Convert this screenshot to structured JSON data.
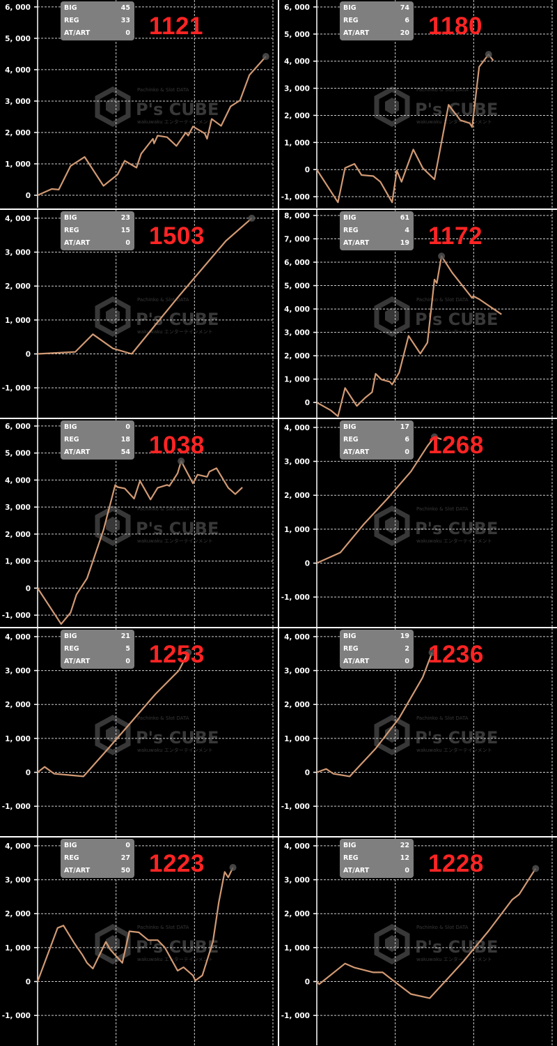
{
  "watermark": {
    "brand": "P's CUBE",
    "tagline": "Pachinko & Slot DATA",
    "sub": "wakuwaku エンターテインメント"
  },
  "colors": {
    "line": "#d29a74",
    "grid": "#cfcfcf",
    "axis": "#ffffff",
    "number": "#ff2424",
    "infobox": "#7f7f7f",
    "marker": "#555555"
  },
  "info_labels": [
    "BIG",
    "REG",
    "AT/ART"
  ],
  "chart_data": [
    {
      "type": "line",
      "label": "1121",
      "stats": {
        "BIG": 45,
        "REG": 33,
        "AT/ART": 0
      },
      "yticks": [
        0,
        1000,
        2000,
        3000,
        4000,
        5000,
        6000
      ],
      "ylim": [
        -400,
        6220
      ],
      "xlim": [
        0,
        100
      ],
      "grid": true,
      "points": [
        [
          0,
          0
        ],
        [
          6,
          200
        ],
        [
          9,
          180
        ],
        [
          14,
          930
        ],
        [
          20,
          1220
        ],
        [
          28,
          300
        ],
        [
          34,
          660
        ],
        [
          37,
          1100
        ],
        [
          42,
          880
        ],
        [
          44,
          1320
        ],
        [
          49,
          1800
        ],
        [
          49.5,
          1650
        ],
        [
          51,
          1900
        ],
        [
          55,
          1850
        ],
        [
          59,
          1570
        ],
        [
          63,
          2000
        ],
        [
          64,
          1900
        ],
        [
          66,
          2190
        ],
        [
          71,
          1970
        ],
        [
          72,
          1800
        ],
        [
          74,
          2430
        ],
        [
          78,
          2210
        ],
        [
          82,
          2830
        ],
        [
          86,
          3020
        ],
        [
          90,
          3830
        ],
        [
          97,
          4420
        ]
      ]
    },
    {
      "type": "line",
      "label": "1180",
      "stats": {
        "BIG": 74,
        "REG": 6,
        "AT/ART": 20
      },
      "yticks": [
        -1000,
        0,
        1000,
        2000,
        3000,
        4000,
        5000,
        6000
      ],
      "ylim": [
        -1410,
        6256
      ],
      "xlim": [
        0,
        100
      ],
      "grid": true,
      "points": [
        [
          0,
          0
        ],
        [
          9,
          -1210
        ],
        [
          12,
          60
        ],
        [
          16,
          210
        ],
        [
          19,
          -200
        ],
        [
          24,
          -240
        ],
        [
          27,
          -450
        ],
        [
          32,
          -1210
        ],
        [
          34,
          -40
        ],
        [
          36,
          -450
        ],
        [
          41,
          740
        ],
        [
          45,
          60
        ],
        [
          50,
          -360
        ],
        [
          56,
          2390
        ],
        [
          61,
          1820
        ],
        [
          65,
          1710
        ],
        [
          66,
          1570
        ],
        [
          69,
          3790
        ],
        [
          73,
          4250
        ],
        [
          75,
          4020
        ]
      ]
    },
    {
      "type": "line",
      "label": "1503",
      "stats": {
        "BIG": 23,
        "REG": 15,
        "AT/ART": 0
      },
      "yticks": [
        -1000,
        0,
        1000,
        2000,
        3000,
        4000
      ],
      "ylim": [
        -1880,
        4245
      ],
      "xlim": [
        0,
        100
      ],
      "grid": true,
      "points": [
        [
          0,
          0
        ],
        [
          16,
          60
        ],
        [
          23.5,
          580
        ],
        [
          32,
          160
        ],
        [
          40,
          0
        ],
        [
          60,
          1700
        ],
        [
          80,
          3330
        ],
        [
          91,
          4000
        ]
      ]
    },
    {
      "type": "line",
      "label": "1172",
      "stats": {
        "BIG": 61,
        "REG": 4,
        "AT/ART": 19
      },
      "yticks": [
        0,
        1000,
        2000,
        3000,
        4000,
        5000,
        6000,
        7000,
        8000
      ],
      "ylim": [
        -650,
        8237
      ],
      "xlim": [
        0,
        100
      ],
      "grid": true,
      "points": [
        [
          0,
          0
        ],
        [
          6,
          -340
        ],
        [
          9,
          -590
        ],
        [
          12,
          620
        ],
        [
          17,
          -150
        ],
        [
          20.5,
          200
        ],
        [
          23.5,
          440
        ],
        [
          25,
          1230
        ],
        [
          27.5,
          980
        ],
        [
          31,
          890
        ],
        [
          32,
          770
        ],
        [
          35,
          1280
        ],
        [
          39,
          2850
        ],
        [
          44,
          2090
        ],
        [
          47,
          2560
        ],
        [
          50,
          5260
        ],
        [
          51,
          5110
        ],
        [
          53,
          6260
        ],
        [
          57.5,
          5560
        ],
        [
          66,
          4470
        ],
        [
          66.5,
          4550
        ],
        [
          69,
          4420
        ],
        [
          78.5,
          3770
        ]
      ]
    },
    {
      "type": "line",
      "label": "1038",
      "stats": {
        "BIG": 0,
        "REG": 18,
        "AT/ART": 54
      },
      "yticks": [
        -1000,
        0,
        1000,
        2000,
        3000,
        4000,
        5000,
        6000
      ],
      "ylim": [
        -1435,
        6256
      ],
      "xlim": [
        0,
        100
      ],
      "grid": true,
      "points": [
        [
          0,
          0
        ],
        [
          10,
          -1330
        ],
        [
          14,
          -910
        ],
        [
          16.5,
          -240
        ],
        [
          21,
          360
        ],
        [
          28,
          2150
        ],
        [
          33,
          3820
        ],
        [
          34,
          3740
        ],
        [
          37,
          3690
        ],
        [
          41,
          3310
        ],
        [
          43.5,
          3970
        ],
        [
          48,
          3280
        ],
        [
          51,
          3710
        ],
        [
          55,
          3820
        ],
        [
          56,
          3780
        ],
        [
          59.5,
          4250
        ],
        [
          61,
          4700
        ],
        [
          66,
          3880
        ],
        [
          68,
          4200
        ],
        [
          72,
          4120
        ],
        [
          73,
          4310
        ],
        [
          76,
          4440
        ],
        [
          81,
          3710
        ],
        [
          84,
          3480
        ],
        [
          87,
          3730
        ]
      ]
    },
    {
      "type": "line",
      "label": "1268",
      "stats": {
        "BIG": 17,
        "REG": 6,
        "AT/ART": 0
      },
      "yticks": [
        -1000,
        0,
        1000,
        2000,
        3000,
        4000
      ],
      "ylim": [
        -1880,
        4245
      ],
      "xlim": [
        0,
        100
      ],
      "grid": true,
      "points": [
        [
          0,
          0
        ],
        [
          10,
          310
        ],
        [
          20,
          1150
        ],
        [
          30,
          1900
        ],
        [
          40,
          2700
        ],
        [
          47,
          3450
        ],
        [
          50,
          3720
        ],
        [
          53,
          3650
        ]
      ]
    },
    {
      "type": "line",
      "label": "1253",
      "stats": {
        "BIG": 21,
        "REG": 5,
        "AT/ART": 0
      },
      "yticks": [
        -1000,
        0,
        1000,
        2000,
        3000,
        4000
      ],
      "ylim": [
        -1880,
        4245
      ],
      "xlim": [
        0,
        100
      ],
      "grid": true,
      "points": [
        [
          0,
          0
        ],
        [
          3,
          160
        ],
        [
          7,
          -40
        ],
        [
          19.5,
          -120
        ],
        [
          30,
          700
        ],
        [
          40,
          1500
        ],
        [
          50,
          2300
        ],
        [
          60,
          3000
        ],
        [
          64,
          3530
        ]
      ]
    },
    {
      "type": "line",
      "label": "1236",
      "stats": {
        "BIG": 19,
        "REG": 2,
        "AT/ART": 0
      },
      "yticks": [
        -1000,
        0,
        1000,
        2000,
        3000,
        4000
      ],
      "ylim": [
        -1880,
        4245
      ],
      "xlim": [
        0,
        100
      ],
      "grid": true,
      "points": [
        [
          0,
          0
        ],
        [
          4,
          100
        ],
        [
          7,
          -40
        ],
        [
          14,
          -120
        ],
        [
          25,
          700
        ],
        [
          35,
          1600
        ],
        [
          45,
          2800
        ],
        [
          49,
          3530
        ]
      ]
    },
    {
      "type": "line",
      "label": "1223",
      "stats": {
        "BIG": 0,
        "REG": 27,
        "AT/ART": 50
      },
      "yticks": [
        -1000,
        0,
        1000,
        2000,
        3000,
        4000
      ],
      "ylim": [
        -1880,
        4245
      ],
      "xlim": [
        0,
        100
      ],
      "grid": true,
      "points": [
        [
          0,
          0
        ],
        [
          8.5,
          1580
        ],
        [
          11,
          1650
        ],
        [
          15.5,
          1140
        ],
        [
          19,
          790
        ],
        [
          21,
          550
        ],
        [
          23.5,
          380
        ],
        [
          29,
          1170
        ],
        [
          31,
          930
        ],
        [
          36,
          550
        ],
        [
          39,
          1480
        ],
        [
          43,
          1450
        ],
        [
          47,
          1220
        ],
        [
          51,
          1220
        ],
        [
          54,
          1010
        ],
        [
          59.5,
          320
        ],
        [
          62,
          420
        ],
        [
          66,
          180
        ],
        [
          67,
          30
        ],
        [
          70,
          180
        ],
        [
          74.5,
          1170
        ],
        [
          77,
          2340
        ],
        [
          79.5,
          3230
        ],
        [
          81,
          3070
        ],
        [
          83,
          3360
        ]
      ]
    },
    {
      "type": "line",
      "label": "1228",
      "stats": {
        "BIG": 22,
        "REG": 12,
        "AT/ART": 0
      },
      "yticks": [
        -1000,
        0,
        1000,
        2000,
        3000,
        4000
      ],
      "ylim": [
        -1880,
        4245
      ],
      "xlim": [
        0,
        100
      ],
      "grid": true,
      "points": [
        [
          0,
          0
        ],
        [
          1,
          -80
        ],
        [
          12,
          530
        ],
        [
          16,
          410
        ],
        [
          24,
          270
        ],
        [
          28,
          270
        ],
        [
          33,
          0
        ],
        [
          40,
          -370
        ],
        [
          48,
          -490
        ],
        [
          62,
          570
        ],
        [
          73,
          1490
        ],
        [
          83,
          2410
        ],
        [
          86,
          2570
        ],
        [
          93,
          3330
        ]
      ]
    }
  ]
}
